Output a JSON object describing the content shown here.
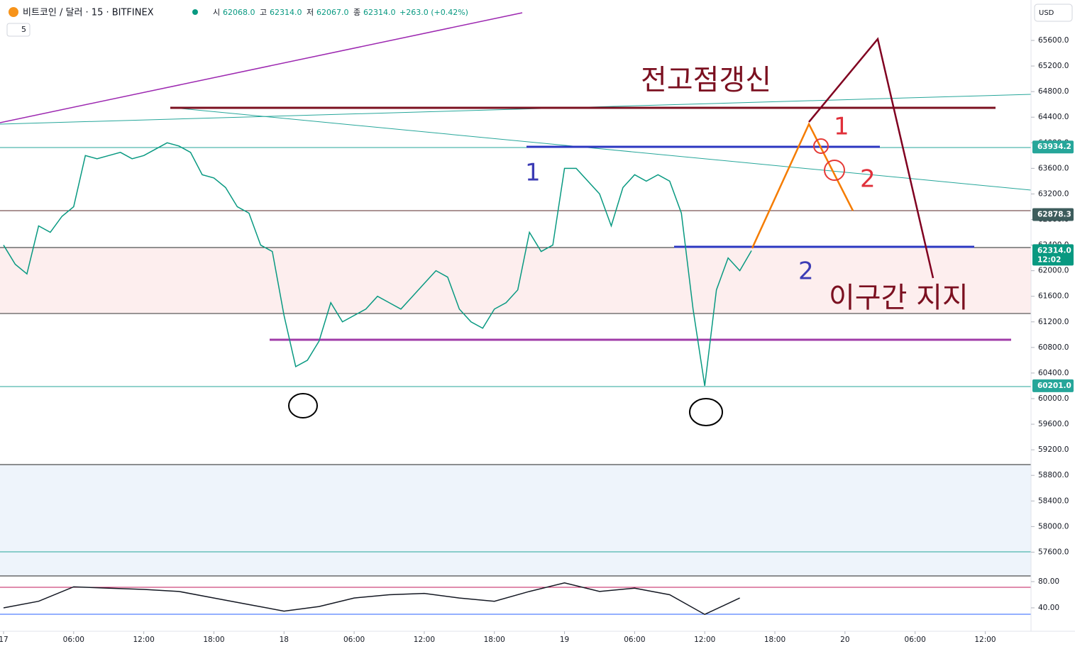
{
  "header": {
    "symbol": "비트코인 / 달러 · 15 · BITFINEX",
    "open_label": "시",
    "open": "62068.0",
    "high_label": "고",
    "high": "62314.0",
    "low_label": "저",
    "low": "62067.0",
    "close_label": "종",
    "close": "62314.0",
    "change": "+263.0 (+0.42%)",
    "indicator": "5",
    "currency": "USD"
  },
  "annotations": {
    "new_high": "전고점갱신",
    "blue_1": "1",
    "red_1": "1",
    "red_2": "2",
    "blue_2": "2",
    "support": "이구간 지지"
  },
  "chart_data": [
    {
      "type": "line",
      "series": [
        {
          "name": "BTCUSD",
          "color": "#089981",
          "values": [
            62400,
            62100,
            61950,
            62700,
            62600,
            62850,
            63000,
            63800,
            63750,
            63800,
            63850,
            63750,
            63800,
            63900,
            64000,
            63950,
            63850,
            63500,
            63450,
            63300,
            63000,
            62900,
            62400,
            62300,
            61300,
            60500,
            60600,
            60900,
            61500,
            61200,
            61300,
            61400,
            61600,
            61500,
            61400,
            61600,
            61800,
            62000,
            61900,
            61400,
            61200,
            61100,
            61400,
            61500,
            61700,
            62600,
            62300,
            62400,
            63600,
            63600,
            63400,
            63200,
            62700,
            63300,
            63500,
            63400,
            63500,
            63400,
            62900,
            61400,
            60200,
            61700,
            62200,
            62000,
            62314
          ]
        }
      ],
      "x": [
        0,
        1,
        2,
        3,
        4,
        5,
        6,
        7,
        8,
        9,
        10,
        11,
        12,
        13,
        14,
        15,
        16,
        17,
        18,
        19,
        20,
        21,
        22,
        23,
        24,
        25,
        26,
        27,
        28,
        29,
        30,
        31,
        32,
        33,
        34,
        35,
        36,
        37,
        38,
        39,
        40,
        41,
        42,
        43,
        44,
        45,
        46,
        47,
        48,
        49,
        50,
        51,
        52,
        53,
        54,
        55,
        56,
        57,
        58,
        59,
        60,
        61,
        62,
        63,
        64
      ],
      "xlim": [
        -0.3,
        87.9
      ],
      "ylim": [
        57250,
        66232
      ],
      "xticks": [
        {
          "value": 0,
          "label": "17"
        },
        {
          "value": 6,
          "label": "06:00"
        },
        {
          "value": 12,
          "label": "12:00"
        },
        {
          "value": 18,
          "label": "18:00"
        },
        {
          "value": 24,
          "label": "18"
        },
        {
          "value": 30,
          "label": "06:00"
        },
        {
          "value": 36,
          "label": "12:00"
        },
        {
          "value": 42,
          "label": "18:00"
        },
        {
          "value": 48,
          "label": "19"
        },
        {
          "value": 54,
          "label": "06:00"
        },
        {
          "value": 60,
          "label": "12:00"
        },
        {
          "value": 66,
          "label": "18:00"
        },
        {
          "value": 72,
          "label": "20"
        },
        {
          "value": 78,
          "label": "06:00"
        },
        {
          "value": 84,
          "label": "12:00"
        }
      ],
      "yticks": [
        {
          "value": 65600,
          "label": "65600.0"
        },
        {
          "value": 65200,
          "label": "65200.0"
        },
        {
          "value": 64800,
          "label": "64800.0"
        },
        {
          "value": 64400,
          "label": "64400.0"
        },
        {
          "value": 64000,
          "label": "64000.0"
        },
        {
          "value": 63600,
          "label": "63600.0"
        },
        {
          "value": 63200,
          "label": "63200.0"
        },
        {
          "value": 62800,
          "label": "62800.0"
        },
        {
          "value": 62400,
          "label": "62400.0"
        },
        {
          "value": 62000,
          "label": "62000.0"
        },
        {
          "value": 61600,
          "label": "61600.0"
        },
        {
          "value": 61200,
          "label": "61200.0"
        },
        {
          "value": 60800,
          "label": "60800.0"
        },
        {
          "value": 60400,
          "label": "60400.0"
        },
        {
          "value": 60000,
          "label": "60000.0"
        },
        {
          "value": 59600,
          "label": "59600.0"
        },
        {
          "value": 59200,
          "label": "59200.0"
        },
        {
          "value": 58800,
          "label": "58800.0"
        },
        {
          "value": 58400,
          "label": "58400.0"
        },
        {
          "value": 58000,
          "label": "58000.0"
        },
        {
          "value": 57600,
          "label": "57600.0"
        }
      ],
      "price_labels": [
        {
          "value": 63934.2,
          "color": "#26a69a"
        },
        {
          "value": 62878.3,
          "color": "#3d5c5c"
        },
        {
          "value": 62314,
          "label": "62314.0",
          "color": "#089981"
        },
        {
          "value": 60201,
          "label": "60201.0",
          "color": "#26a69a"
        }
      ],
      "countdown": "12:02"
    },
    {
      "type": "line",
      "series": [
        {
          "name": "RSI",
          "color": "#131722",
          "values": [
            40,
            50,
            72,
            70,
            68,
            65,
            55,
            45,
            35,
            42,
            55,
            60,
            62,
            55,
            50,
            65,
            78,
            65,
            70,
            60,
            30,
            55
          ]
        }
      ],
      "x": [
        0,
        3,
        6,
        9,
        12,
        15,
        18,
        21,
        24,
        27,
        30,
        33,
        36,
        39,
        42,
        45,
        48,
        51,
        54,
        57,
        60,
        63
      ],
      "xlim": [
        -0.3,
        87.9
      ],
      "ylim": [
        9.7,
        88.6
      ],
      "yticks": [
        {
          "value": 80,
          "label": "80.00"
        },
        {
          "value": 40,
          "label": "40.00"
        }
      ]
    }
  ]
}
